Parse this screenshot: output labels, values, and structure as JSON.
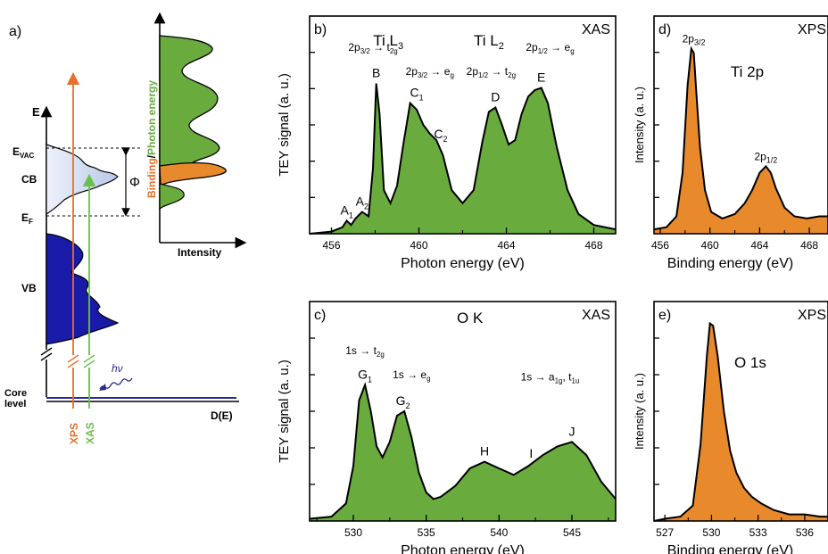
{
  "colors": {
    "xas_fill": "#6aab3e",
    "xps_fill": "#e88a2c",
    "vb_fill": "#1a1aa8",
    "cb_fill": "#c8d4ec",
    "xps_arrow": "#e8702a",
    "xas_arrow": "#6abf4b",
    "core_line": "#2a2a8a"
  },
  "chart_data": [
    {
      "id": "a",
      "type": "diagram",
      "panel_label": "a)",
      "labels": {
        "e_axis": "E",
        "evac": "E",
        "evac_sub": "VAC",
        "ef": "E",
        "ef_sub": "F",
        "cb": "CB",
        "vb": "VB",
        "phi": "Φ",
        "core1": "Core",
        "core2": "level",
        "de": "D(E)",
        "xps": "XPS",
        "xas": "XAS",
        "hv": "hν"
      },
      "inset": {
        "ylabel_binding": "Binding",
        "ylabel_slash": "/",
        "ylabel_photon": "Photon energy",
        "xlabel": "Intensity"
      }
    },
    {
      "id": "b",
      "type": "area",
      "panel_label": "b)",
      "title_left": "Ti L",
      "title_left_sub": "3",
      "title_right": "Ti L",
      "title_right_sub": "2",
      "corner": "XAS",
      "xlabel": "Photon energy (eV)",
      "ylabel": "TEY signal (a. u.)",
      "xlim": [
        455,
        469
      ],
      "ylim": [
        0,
        1.0
      ],
      "xticks": [
        456,
        460,
        464,
        468
      ],
      "x": [
        455.0,
        456.0,
        456.5,
        456.7,
        456.9,
        457.1,
        457.4,
        457.7,
        457.9,
        458.05,
        458.2,
        458.4,
        458.7,
        459.0,
        459.3,
        459.6,
        459.9,
        460.2,
        460.5,
        460.8,
        461.1,
        461.5,
        462.0,
        462.5,
        462.9,
        463.2,
        463.5,
        463.8,
        464.1,
        464.4,
        464.7,
        465.0,
        465.3,
        465.6,
        465.9,
        466.3,
        466.8,
        467.3,
        468.0,
        469.0
      ],
      "y": [
        0.0,
        0.01,
        0.03,
        0.06,
        0.04,
        0.07,
        0.1,
        0.08,
        0.3,
        0.69,
        0.55,
        0.2,
        0.14,
        0.22,
        0.42,
        0.6,
        0.57,
        0.5,
        0.46,
        0.43,
        0.36,
        0.2,
        0.14,
        0.2,
        0.42,
        0.56,
        0.58,
        0.5,
        0.41,
        0.43,
        0.55,
        0.63,
        0.66,
        0.67,
        0.6,
        0.4,
        0.2,
        0.09,
        0.04,
        0.02
      ],
      "peaks": [
        {
          "label": "A",
          "sub": "1",
          "x": 456.7,
          "y": 0.06
        },
        {
          "label": "A",
          "sub": "2",
          "x": 457.4,
          "y": 0.1
        },
        {
          "label": "B",
          "sub": "",
          "x": 458.05,
          "y": 0.69
        },
        {
          "label": "C",
          "sub": "1",
          "x": 459.9,
          "y": 0.6
        },
        {
          "label": "C",
          "sub": "2",
          "x": 461.0,
          "y": 0.41
        },
        {
          "label": "D",
          "sub": "",
          "x": 463.5,
          "y": 0.58
        },
        {
          "label": "E",
          "sub": "",
          "x": 465.6,
          "y": 0.67
        }
      ],
      "transitions": [
        {
          "base": "2p",
          "sub1": "3/2",
          "arrow": " → t",
          "sub2": "2g",
          "x": 457.9,
          "y": 0.84
        },
        {
          "base": "2p",
          "sub1": "3/2",
          "arrow": " → e",
          "sub2": "g",
          "x": 460.5,
          "y": 0.73
        },
        {
          "base": "2p",
          "sub1": "1/2",
          "arrow": " → t",
          "sub2": "2g",
          "x": 463.3,
          "y": 0.73
        },
        {
          "base": "2p",
          "sub1": "1/2",
          "arrow": " → e",
          "sub2": "g",
          "x": 466.0,
          "y": 0.84
        }
      ]
    },
    {
      "id": "c",
      "type": "area",
      "panel_label": "c)",
      "title": "O K",
      "corner": "XAS",
      "xlabel": "Photon energy (eV)",
      "ylabel": "TEY signal (a. u.)",
      "xlim": [
        527,
        548
      ],
      "ylim": [
        0,
        1.0
      ],
      "xticks": [
        530,
        535,
        540,
        545
      ],
      "x": [
        527.0,
        528.5,
        529.5,
        530.0,
        530.4,
        530.8,
        531.2,
        531.6,
        532.0,
        532.5,
        533.0,
        533.5,
        534.0,
        534.5,
        535.0,
        535.5,
        536.0,
        537.0,
        538.0,
        539.0,
        540.0,
        541.0,
        542.0,
        543.0,
        544.0,
        545.0,
        546.0,
        547.0,
        548.0
      ],
      "y": [
        0.01,
        0.02,
        0.08,
        0.25,
        0.55,
        0.62,
        0.5,
        0.34,
        0.29,
        0.36,
        0.48,
        0.5,
        0.38,
        0.22,
        0.13,
        0.1,
        0.11,
        0.16,
        0.24,
        0.27,
        0.24,
        0.21,
        0.25,
        0.3,
        0.34,
        0.36,
        0.3,
        0.18,
        0.1
      ],
      "peaks": [
        {
          "label": "G",
          "sub": "1",
          "x": 530.8,
          "y": 0.62
        },
        {
          "label": "G",
          "sub": "2",
          "x": 533.4,
          "y": 0.5
        },
        {
          "label": "H",
          "sub": "",
          "x": 539.0,
          "y": 0.27
        },
        {
          "label": "I",
          "sub": "",
          "x": 542.2,
          "y": 0.26
        },
        {
          "label": "J",
          "sub": "",
          "x": 545.0,
          "y": 0.36
        }
      ],
      "transitions": [
        {
          "base": "1s",
          "sub1": "",
          "arrow": " → t",
          "sub2": "2g",
          "x": 530.8,
          "y": 0.76
        },
        {
          "base": "1s",
          "sub1": "",
          "arrow": " → e",
          "sub2": "g",
          "x": 534.0,
          "y": 0.65
        },
        {
          "base": "1s",
          "sub1": "",
          "arrow": " → a",
          "sub2": "1g",
          "extra": ", t",
          "sub3": "1u",
          "x": 543.5,
          "y": 0.64
        }
      ]
    },
    {
      "id": "d",
      "type": "area",
      "panel_label": "d)",
      "title": "Ti 2p",
      "corner": "XPS",
      "xlabel": "Binding energy (eV)",
      "ylabel": "Intensity (a. u.)",
      "xlim": [
        455.5,
        469.5
      ],
      "ylim": [
        0,
        1.0
      ],
      "xticks": [
        456,
        460,
        464,
        468
      ],
      "x": [
        455.5,
        456.5,
        457.3,
        457.8,
        458.2,
        458.5,
        458.7,
        458.9,
        459.2,
        459.6,
        460.1,
        461.0,
        462.0,
        462.8,
        463.4,
        464.0,
        464.5,
        464.9,
        465.3,
        466.0,
        466.8,
        467.8,
        468.8,
        469.5
      ],
      "y": [
        0.02,
        0.03,
        0.08,
        0.28,
        0.68,
        0.85,
        0.83,
        0.65,
        0.4,
        0.2,
        0.1,
        0.07,
        0.09,
        0.14,
        0.2,
        0.28,
        0.31,
        0.28,
        0.21,
        0.12,
        0.08,
        0.07,
        0.08,
        0.08
      ],
      "peaks": [
        {
          "label": "2p",
          "sub": "3/2",
          "x": 458.7,
          "y": 0.85
        },
        {
          "label": "2p",
          "sub": "1/2",
          "x": 464.5,
          "y": 0.31
        }
      ]
    },
    {
      "id": "e",
      "type": "area",
      "panel_label": "e)",
      "title": "O 1s",
      "corner": "XPS",
      "xlabel": "Binding energy (eV)",
      "ylabel": "Intensity (a. u.)",
      "xlim": [
        526.3,
        537.5
      ],
      "ylim": [
        0,
        1.0
      ],
      "xticks": [
        527,
        530,
        533,
        536
      ],
      "x": [
        526.3,
        527.0,
        528.0,
        528.8,
        529.3,
        529.7,
        529.9,
        530.1,
        530.4,
        530.8,
        531.2,
        531.6,
        532.1,
        532.6,
        533.2,
        534.0,
        535.0,
        536.0,
        537.0,
        537.5
      ],
      "y": [
        0.0,
        0.01,
        0.02,
        0.07,
        0.35,
        0.75,
        0.9,
        0.89,
        0.75,
        0.5,
        0.32,
        0.22,
        0.15,
        0.11,
        0.08,
        0.05,
        0.03,
        0.03,
        0.02,
        0.02
      ],
      "peaks": []
    }
  ]
}
